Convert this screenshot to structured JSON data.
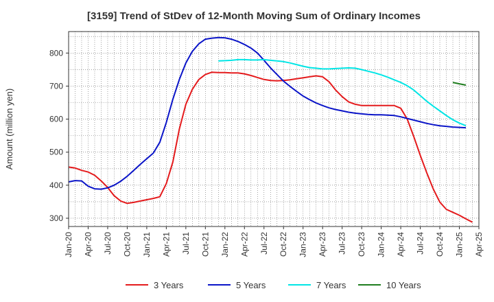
{
  "chart_data": {
    "type": "line",
    "title": "[3159]  Trend of StDev of 12-Month Moving Sum of Ordinary Incomes",
    "ylabel": "Amount (million yen)",
    "xlabel": "",
    "ylim": [
      275,
      865
    ],
    "xlim": [
      "2020-01",
      "2025-04"
    ],
    "yticks": [
      300,
      400,
      500,
      600,
      700,
      800
    ],
    "xticks": [
      "Jan-20",
      "Apr-20",
      "Jul-20",
      "Oct-20",
      "Jan-21",
      "Apr-21",
      "Jul-21",
      "Oct-21",
      "Jan-22",
      "Apr-22",
      "Jul-22",
      "Oct-22",
      "Jan-23",
      "Apr-23",
      "Jul-23",
      "Oct-23",
      "Jan-24",
      "Apr-24",
      "Jul-24",
      "Oct-24",
      "Jan-25",
      "Apr-25"
    ],
    "grid": true,
    "legend_position": "bottom",
    "series": [
      {
        "name": "3 Years",
        "color": "#e41a1c",
        "points": [
          [
            "2020-01",
            455
          ],
          [
            "2020-02",
            452
          ],
          [
            "2020-03",
            445
          ],
          [
            "2020-04",
            440
          ],
          [
            "2020-05",
            430
          ],
          [
            "2020-06",
            413
          ],
          [
            "2020-07",
            393
          ],
          [
            "2020-08",
            368
          ],
          [
            "2020-09",
            352
          ],
          [
            "2020-10",
            345
          ],
          [
            "2020-11",
            348
          ],
          [
            "2020-12",
            352
          ],
          [
            "2021-01",
            356
          ],
          [
            "2021-02",
            360
          ],
          [
            "2021-03",
            365
          ],
          [
            "2021-04",
            405
          ],
          [
            "2021-05",
            470
          ],
          [
            "2021-06",
            570
          ],
          [
            "2021-07",
            645
          ],
          [
            "2021-08",
            690
          ],
          [
            "2021-09",
            720
          ],
          [
            "2021-10",
            735
          ],
          [
            "2021-11",
            742
          ],
          [
            "2021-12",
            741
          ],
          [
            "2022-01",
            741
          ],
          [
            "2022-02",
            740
          ],
          [
            "2022-03",
            740
          ],
          [
            "2022-04",
            737
          ],
          [
            "2022-05",
            732
          ],
          [
            "2022-06",
            726
          ],
          [
            "2022-07",
            720
          ],
          [
            "2022-08",
            717
          ],
          [
            "2022-09",
            716
          ],
          [
            "2022-10",
            717
          ],
          [
            "2022-11",
            719
          ],
          [
            "2022-12",
            722
          ],
          [
            "2023-01",
            725
          ],
          [
            "2023-02",
            728
          ],
          [
            "2023-03",
            731
          ],
          [
            "2023-04",
            728
          ],
          [
            "2023-05",
            713
          ],
          [
            "2023-06",
            688
          ],
          [
            "2023-07",
            668
          ],
          [
            "2023-08",
            652
          ],
          [
            "2023-09",
            645
          ],
          [
            "2023-10",
            641
          ],
          [
            "2023-11",
            641
          ],
          [
            "2023-12",
            641
          ],
          [
            "2024-01",
            641
          ],
          [
            "2024-02",
            641
          ],
          [
            "2024-03",
            641
          ],
          [
            "2024-04",
            633
          ],
          [
            "2024-05",
            600
          ],
          [
            "2024-06",
            547
          ],
          [
            "2024-07",
            490
          ],
          [
            "2024-08",
            437
          ],
          [
            "2024-09",
            388
          ],
          [
            "2024-10",
            349
          ],
          [
            "2024-11",
            327
          ],
          [
            "2024-12",
            318
          ],
          [
            "2025-01",
            309
          ],
          [
            "2025-02",
            298
          ],
          [
            "2025-03",
            288
          ]
        ]
      },
      {
        "name": "5 Years",
        "color": "#0a14c8",
        "points": [
          [
            "2020-01",
            410
          ],
          [
            "2020-02",
            414
          ],
          [
            "2020-03",
            413
          ],
          [
            "2020-04",
            397
          ],
          [
            "2020-05",
            389
          ],
          [
            "2020-06",
            388
          ],
          [
            "2020-07",
            392
          ],
          [
            "2020-08",
            400
          ],
          [
            "2020-09",
            412
          ],
          [
            "2020-10",
            427
          ],
          [
            "2020-11",
            445
          ],
          [
            "2020-12",
            463
          ],
          [
            "2021-01",
            480
          ],
          [
            "2021-02",
            497
          ],
          [
            "2021-03",
            530
          ],
          [
            "2021-04",
            590
          ],
          [
            "2021-05",
            660
          ],
          [
            "2021-06",
            720
          ],
          [
            "2021-07",
            770
          ],
          [
            "2021-08",
            805
          ],
          [
            "2021-09",
            828
          ],
          [
            "2021-10",
            842
          ],
          [
            "2021-11",
            845
          ],
          [
            "2021-12",
            847
          ],
          [
            "2022-01",
            846
          ],
          [
            "2022-02",
            842
          ],
          [
            "2022-03",
            835
          ],
          [
            "2022-04",
            826
          ],
          [
            "2022-05",
            815
          ],
          [
            "2022-06",
            800
          ],
          [
            "2022-07",
            778
          ],
          [
            "2022-08",
            755
          ],
          [
            "2022-09",
            735
          ],
          [
            "2022-10",
            715
          ],
          [
            "2022-11",
            699
          ],
          [
            "2022-12",
            684
          ],
          [
            "2023-01",
            670
          ],
          [
            "2023-02",
            659
          ],
          [
            "2023-03",
            649
          ],
          [
            "2023-04",
            641
          ],
          [
            "2023-05",
            634
          ],
          [
            "2023-06",
            629
          ],
          [
            "2023-07",
            625
          ],
          [
            "2023-08",
            621
          ],
          [
            "2023-09",
            618
          ],
          [
            "2023-10",
            616
          ],
          [
            "2023-11",
            614
          ],
          [
            "2023-12",
            613
          ],
          [
            "2024-01",
            613
          ],
          [
            "2024-02",
            612
          ],
          [
            "2024-03",
            611
          ],
          [
            "2024-04",
            607
          ],
          [
            "2024-05",
            602
          ],
          [
            "2024-06",
            597
          ],
          [
            "2024-07",
            592
          ],
          [
            "2024-08",
            587
          ],
          [
            "2024-09",
            583
          ],
          [
            "2024-10",
            580
          ],
          [
            "2024-11",
            578
          ],
          [
            "2024-12",
            576
          ],
          [
            "2025-01",
            575
          ],
          [
            "2025-02",
            574
          ]
        ]
      },
      {
        "name": "7 Years",
        "color": "#00e5e5",
        "points": [
          [
            "2021-12",
            776
          ],
          [
            "2022-01",
            777
          ],
          [
            "2022-02",
            778
          ],
          [
            "2022-03",
            780
          ],
          [
            "2022-04",
            780
          ],
          [
            "2022-05",
            779
          ],
          [
            "2022-06",
            779
          ],
          [
            "2022-07",
            780
          ],
          [
            "2022-08",
            778
          ],
          [
            "2022-09",
            776
          ],
          [
            "2022-10",
            774
          ],
          [
            "2022-11",
            770
          ],
          [
            "2022-12",
            765
          ],
          [
            "2023-01",
            760
          ],
          [
            "2023-02",
            756
          ],
          [
            "2023-03",
            754
          ],
          [
            "2023-04",
            752
          ],
          [
            "2023-05",
            752
          ],
          [
            "2023-06",
            753
          ],
          [
            "2023-07",
            754
          ],
          [
            "2023-08",
            755
          ],
          [
            "2023-09",
            754
          ],
          [
            "2023-10",
            750
          ],
          [
            "2023-11",
            745
          ],
          [
            "2023-12",
            740
          ],
          [
            "2024-01",
            734
          ],
          [
            "2024-02",
            727
          ],
          [
            "2024-03",
            719
          ],
          [
            "2024-04",
            711
          ],
          [
            "2024-05",
            701
          ],
          [
            "2024-06",
            688
          ],
          [
            "2024-07",
            671
          ],
          [
            "2024-08",
            654
          ],
          [
            "2024-09",
            639
          ],
          [
            "2024-10",
            625
          ],
          [
            "2024-11",
            611
          ],
          [
            "2024-12",
            598
          ],
          [
            "2025-01",
            588
          ],
          [
            "2025-02",
            580
          ]
        ]
      },
      {
        "name": "10 Years",
        "color": "#1e7d1e",
        "points": [
          [
            "2024-12",
            711
          ],
          [
            "2025-01",
            707
          ],
          [
            "2025-02",
            703
          ]
        ]
      }
    ]
  }
}
